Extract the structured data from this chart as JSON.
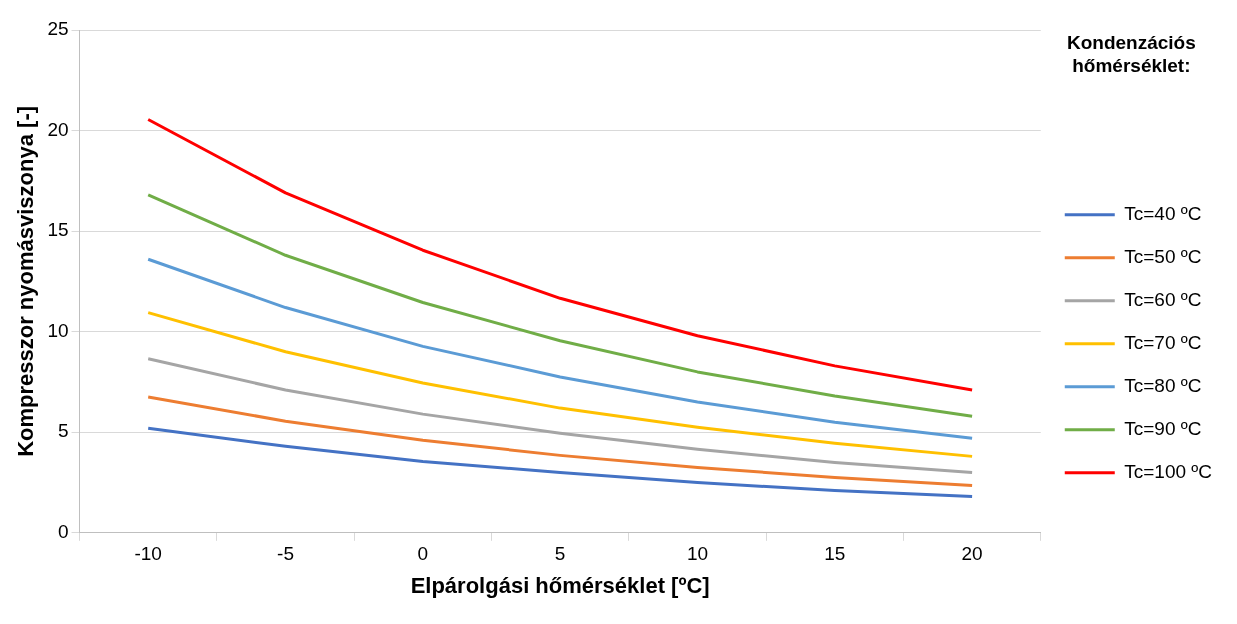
{
  "chart_data": {
    "type": "line",
    "xlabel": "Elpárolgási hőmérséklet [ºC]",
    "ylabel": "Kompresszor nyomásviszonya [-]",
    "legend_title": "Kondenzációs hőmérséklet:",
    "categories": [
      "-10",
      "-5",
      "0",
      "5",
      "10",
      "15",
      "20"
    ],
    "series": [
      {
        "name": "Tc=40 ºC",
        "color": "#4472c4",
        "values": [
          5.2,
          4.3,
          3.55,
          3.0,
          2.5,
          2.1,
          1.8
        ]
      },
      {
        "name": "Tc=50 ºC",
        "color": "#ed7d31",
        "values": [
          6.75,
          5.55,
          4.6,
          3.85,
          3.25,
          2.75,
          2.35
        ]
      },
      {
        "name": "Tc=60 ºC",
        "color": "#a5a5a5",
        "values": [
          8.65,
          7.1,
          5.9,
          4.95,
          4.15,
          3.5,
          3.0
        ]
      },
      {
        "name": "Tc=70 ºC",
        "color": "#ffc000",
        "values": [
          10.95,
          9.0,
          7.45,
          6.2,
          5.25,
          4.45,
          3.8
        ]
      },
      {
        "name": "Tc=80 ºC",
        "color": "#5b9bd5",
        "values": [
          13.6,
          11.2,
          9.27,
          7.75,
          6.5,
          5.5,
          4.7
        ]
      },
      {
        "name": "Tc=90 ºC",
        "color": "#70ad47",
        "values": [
          16.8,
          13.8,
          11.45,
          9.55,
          8.0,
          6.8,
          5.8
        ]
      },
      {
        "name": "Tc=100 ºC",
        "color": "#ff0000",
        "values": [
          20.55,
          16.9,
          14.05,
          11.66,
          9.8,
          8.3,
          7.1
        ]
      }
    ],
    "ylim": [
      0,
      25
    ],
    "yticks": [
      0,
      5,
      10,
      15,
      20,
      25
    ],
    "grid": "y",
    "legend": "right",
    "marker": "none",
    "line_style": "solid"
  }
}
